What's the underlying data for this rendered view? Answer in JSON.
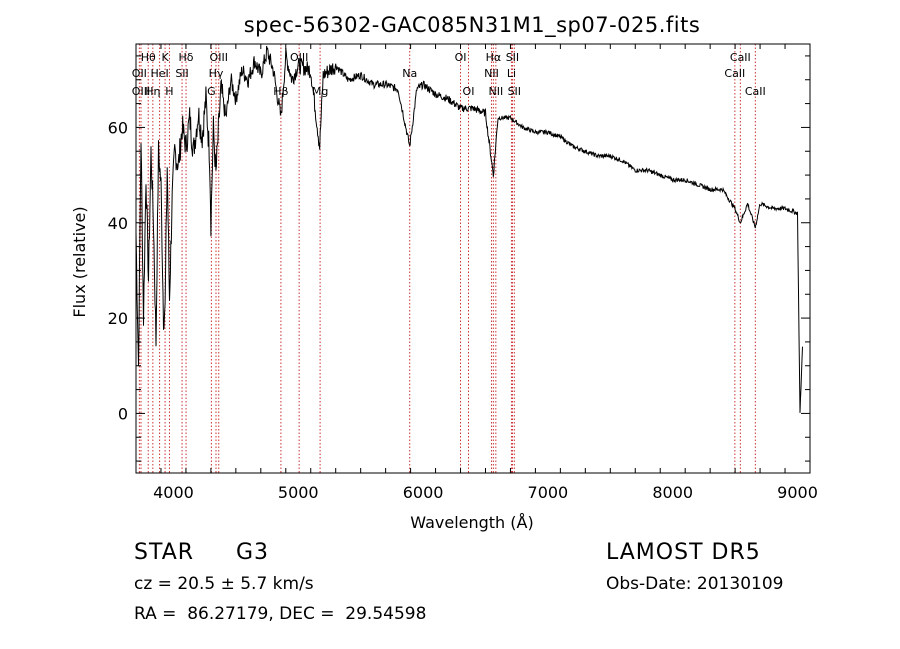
{
  "chart_data": {
    "type": "line",
    "title": "spec-56302-GAC085N31M1_sp07-025.fits",
    "xlabel": "Wavelength (Å)",
    "ylabel": "Flux (relative)",
    "xlim": [
      3700,
      9100
    ],
    "ylim": [
      -12.5,
      77.5
    ],
    "xticks": [
      4000,
      5000,
      6000,
      7000,
      8000,
      9000
    ],
    "yticks": [
      0,
      20,
      40,
      60
    ],
    "grid": false,
    "series": [
      {
        "x": [
          3700,
          3720,
          3740,
          3760,
          3780,
          3800,
          3820,
          3840,
          3860,
          3880,
          3900,
          3920,
          3933,
          3950,
          3968,
          3990,
          4010,
          4040,
          4070,
          4101,
          4130,
          4160,
          4200,
          4230,
          4260,
          4290,
          4300,
          4320,
          4340,
          4380,
          4420,
          4460,
          4500,
          4550,
          4600,
          4650,
          4700,
          4750,
          4800,
          4861,
          4900,
          4950,
          5000,
          5100,
          5172,
          5200,
          5300,
          5400,
          5500,
          5600,
          5700,
          5800,
          5893,
          5950,
          6000,
          6100,
          6200,
          6300,
          6400,
          6500,
          6563,
          6600,
          6700,
          6800,
          6900,
          7000,
          7100,
          7200,
          7300,
          7400,
          7500,
          7600,
          7700,
          7800,
          7900,
          8000,
          8100,
          8200,
          8300,
          8400,
          8498,
          8542,
          8600,
          8662,
          8700,
          8800,
          8900,
          9000,
          9020,
          9040
        ],
        "y": [
          38,
          10,
          58,
          20,
          50,
          28,
          55,
          40,
          15,
          55,
          48,
          20,
          22,
          52,
          24,
          45,
          55,
          52,
          60,
          56,
          62,
          55,
          63,
          58,
          66,
          54,
          40,
          60,
          50,
          68,
          62,
          70,
          66,
          72,
          70,
          74,
          71,
          76,
          72,
          62,
          75,
          70,
          73,
          72,
          56,
          71,
          73,
          70,
          71,
          69,
          69,
          68,
          56,
          68,
          69,
          67,
          66,
          64,
          64,
          63,
          50,
          62,
          62,
          60,
          59,
          59,
          58,
          56,
          55,
          54,
          54,
          53,
          51,
          51,
          50,
          49,
          49,
          48,
          47,
          47,
          43,
          40,
          44,
          39,
          44,
          43,
          43,
          42,
          0,
          14
        ]
      }
    ],
    "lines": [
      {
        "label": "Hθ",
        "x": 3798,
        "row": 1
      },
      {
        "label": "OII",
        "x": 3727,
        "row": 2
      },
      {
        "label": "OIII",
        "x": 3740,
        "row": 3
      },
      {
        "label": "Hη",
        "x": 3835,
        "row": 3
      },
      {
        "label": "HeI",
        "x": 3889,
        "row": 2
      },
      {
        "label": "K",
        "x": 3933,
        "row": 1
      },
      {
        "label": "H",
        "x": 3968,
        "row": 3
      },
      {
        "label": "Hδ",
        "x": 4101,
        "row": 1
      },
      {
        "label": "SII",
        "x": 4069,
        "row": 2
      },
      {
        "label": "OIII",
        "x": 4363,
        "row": 1
      },
      {
        "label": "Hγ",
        "x": 4341,
        "row": 2
      },
      {
        "label": "G",
        "x": 4304,
        "row": 3
      },
      {
        "label": "Hβ",
        "x": 4861,
        "row": 3
      },
      {
        "label": "OIII",
        "x": 5007,
        "row": 1
      },
      {
        "label": "Mg",
        "x": 5175,
        "row": 3
      },
      {
        "label": "Na",
        "x": 5893,
        "row": 2
      },
      {
        "label": "OI",
        "x": 6300,
        "row": 1
      },
      {
        "label": "OI",
        "x": 6364,
        "row": 3
      },
      {
        "label": "Hα",
        "x": 6563,
        "row": 1
      },
      {
        "label": "NII",
        "x": 6548,
        "row": 2
      },
      {
        "label": "NII",
        "x": 6583,
        "row": 3
      },
      {
        "label": "SII",
        "x": 6716,
        "row": 1
      },
      {
        "label": "Li",
        "x": 6708,
        "row": 2
      },
      {
        "label": "SII",
        "x": 6731,
        "row": 3
      },
      {
        "label": "CaII",
        "x": 8498,
        "row": 2
      },
      {
        "label": "CaII",
        "x": 8542,
        "row": 1
      },
      {
        "label": "CaII",
        "x": 8662,
        "row": 3
      }
    ],
    "line_color": "#cc3333",
    "spectrum_color": "#000000"
  },
  "info": {
    "object_class": "STAR",
    "subclass": "G3",
    "survey": "LAMOST DR5",
    "redshift": "cz = 20.5 ± 5.7 km/s",
    "obs_date": "Obs-Date: 20130109",
    "coords": "RA =  86.27179, DEC =  29.54598"
  }
}
